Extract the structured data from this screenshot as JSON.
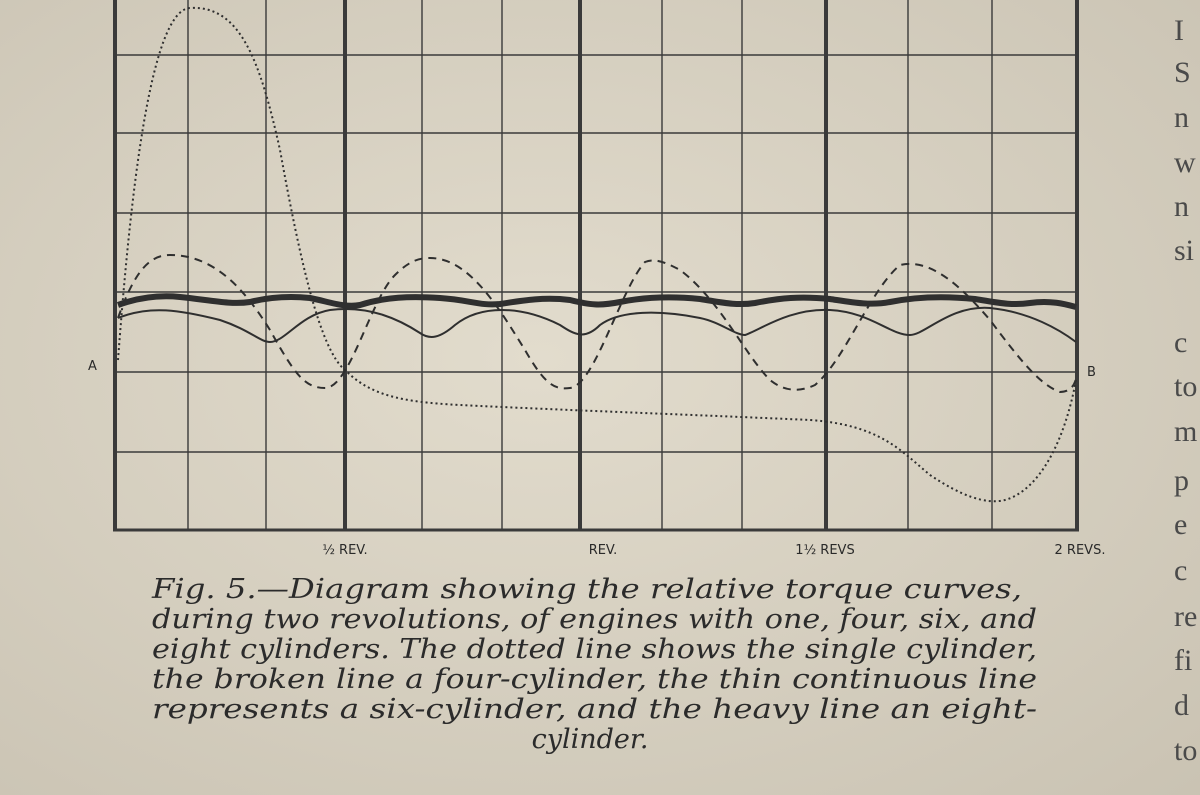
{
  "figure": {
    "point_labels": {
      "start": "A",
      "end": "B"
    },
    "x_labels": [
      "½ REV.",
      "REV.",
      "1½ REVS",
      "2 REVS."
    ],
    "caption_lines": [
      "Fig. 5.—Diagram showing the relative torque curves,",
      "during two revolutions, of engines with one, four, six, and",
      "eight cylinders. The dotted line shows the single cylinder,",
      "the broken line a four-cylinder, the thin continuous line",
      "represents a six-cylinder, and the heavy line an eight-",
      "cylinder."
    ]
  },
  "margin_fragments": [
    "I",
    "S",
    "n",
    "w",
    "n",
    "si",
    "c",
    "to",
    "m",
    "p",
    "e",
    "c",
    "re",
    "fi",
    "d",
    "to"
  ]
}
